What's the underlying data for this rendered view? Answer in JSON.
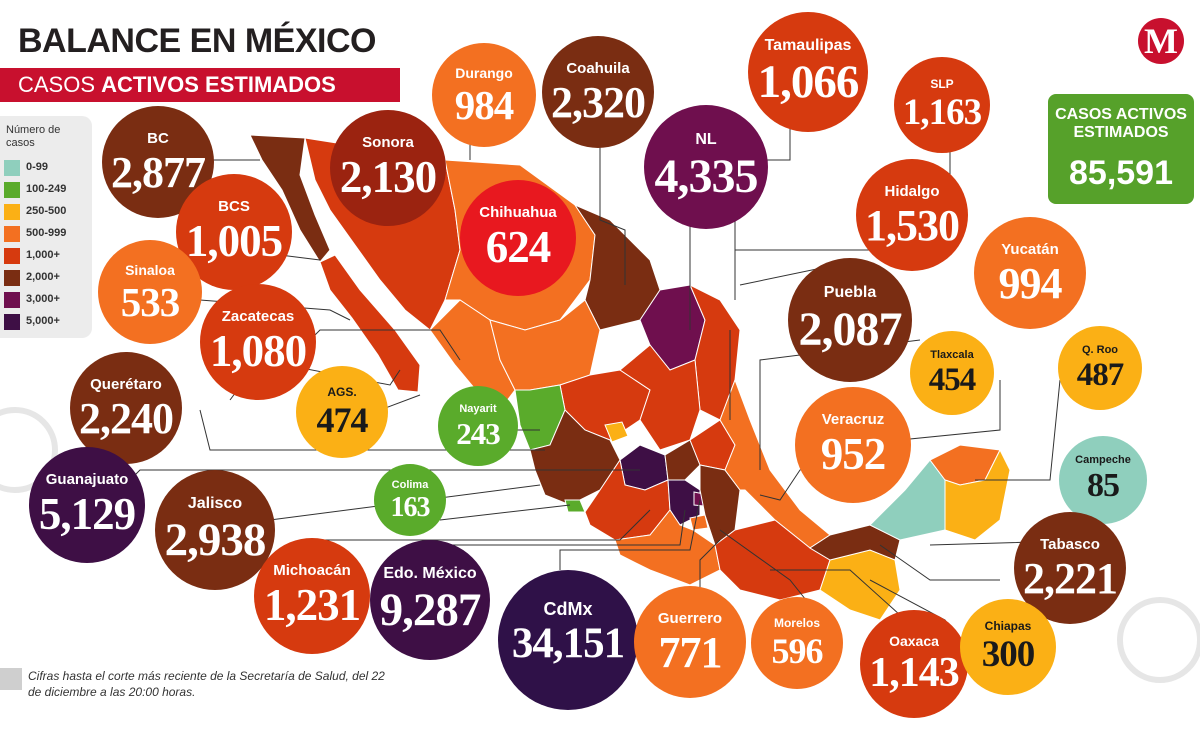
{
  "header": {
    "title_regular": "BALANCE EN ",
    "title_bold": "MÉXICO",
    "subtitle_regular": "CASOS ",
    "subtitle_bold": "ACTIVOS ESTIMADOS",
    "logo": "M"
  },
  "legend": {
    "title": "Número de casos",
    "items": [
      {
        "label": "0-99",
        "color": "#8fcfbd"
      },
      {
        "label": "100-249",
        "color": "#5aab2b"
      },
      {
        "label": "250-500",
        "color": "#fbb015"
      },
      {
        "label": "500-999",
        "color": "#f37021"
      },
      {
        "label": "1,000+",
        "color": "#d63a0f"
      },
      {
        "label": "2,000+",
        "color": "#7a2d12"
      },
      {
        "label": "3,000+",
        "color": "#6f0f4e"
      },
      {
        "label": "5,000+",
        "color": "#3e0f45"
      }
    ]
  },
  "total": {
    "label": "CASOS ACTIVOS ESTIMADOS",
    "value": "85,591",
    "color": "#56a12a"
  },
  "footnote": "Cifras hasta el corte más reciente de la Secretaría de Salud, del 22 de diciembre a las 20:00 horas.",
  "states": [
    {
      "name": "BC",
      "value": "2,877",
      "color": "#7a2d12"
    },
    {
      "name": "BCS",
      "value": "1,005",
      "color": "#d63a0f"
    },
    {
      "name": "Sonora",
      "value": "2,130",
      "color": "#9b2310"
    },
    {
      "name": "Durango",
      "value": "984",
      "color": "#f37021"
    },
    {
      "name": "Coahuila",
      "value": "2,320",
      "color": "#7a2d12"
    },
    {
      "name": "Chihuahua",
      "value": "624",
      "color": "#e8181f"
    },
    {
      "name": "Sinaloa",
      "value": "533",
      "color": "#f37021"
    },
    {
      "name": "Zacatecas",
      "value": "1,080",
      "color": "#d63a0f"
    },
    {
      "name": "Querétaro",
      "value": "2,240",
      "color": "#7a2d12"
    },
    {
      "name": "AGS.",
      "value": "474",
      "color": "#fbb015"
    },
    {
      "name": "Nayarit",
      "value": "243",
      "color": "#5aab2b"
    },
    {
      "name": "Guanajuato",
      "value": "5,129",
      "color": "#3e0f45"
    },
    {
      "name": "Jalisco",
      "value": "2,938",
      "color": "#7a2d12"
    },
    {
      "name": "Colima",
      "value": "163",
      "color": "#5aab2b"
    },
    {
      "name": "Michoacán",
      "value": "1,231",
      "color": "#d63a0f"
    },
    {
      "name": "Edo. México",
      "value": "9,287",
      "color": "#3e0f45"
    },
    {
      "name": "CdMx",
      "value": "34,151",
      "color": "#2f1148"
    },
    {
      "name": "Tamaulipas",
      "value": "1,066",
      "color": "#d63a0f"
    },
    {
      "name": "SLP",
      "value": "1,163",
      "color": "#d63a0f"
    },
    {
      "name": "NL",
      "value": "4,335",
      "color": "#6f0f4e"
    },
    {
      "name": "Hidalgo",
      "value": "1,530",
      "color": "#d63a0f"
    },
    {
      "name": "Yucatán",
      "value": "994",
      "color": "#f37021"
    },
    {
      "name": "Puebla",
      "value": "2,087",
      "color": "#7a2d12"
    },
    {
      "name": "Tlaxcala",
      "value": "454",
      "color": "#fbb015"
    },
    {
      "name": "Q. Roo",
      "value": "487",
      "color": "#fbb015"
    },
    {
      "name": "Veracruz",
      "value": "952",
      "color": "#f37021"
    },
    {
      "name": "Campeche",
      "value": "85",
      "color": "#8fcfbd"
    },
    {
      "name": "Tabasco",
      "value": "2,221",
      "color": "#7a2d12"
    },
    {
      "name": "Guerrero",
      "value": "771",
      "color": "#f37021"
    },
    {
      "name": "Morelos",
      "value": "596",
      "color": "#f37021"
    },
    {
      "name": "Oaxaca",
      "value": "1,143",
      "color": "#d63a0f"
    },
    {
      "name": "Chiapas",
      "value": "300",
      "color": "#fbb015"
    }
  ]
}
